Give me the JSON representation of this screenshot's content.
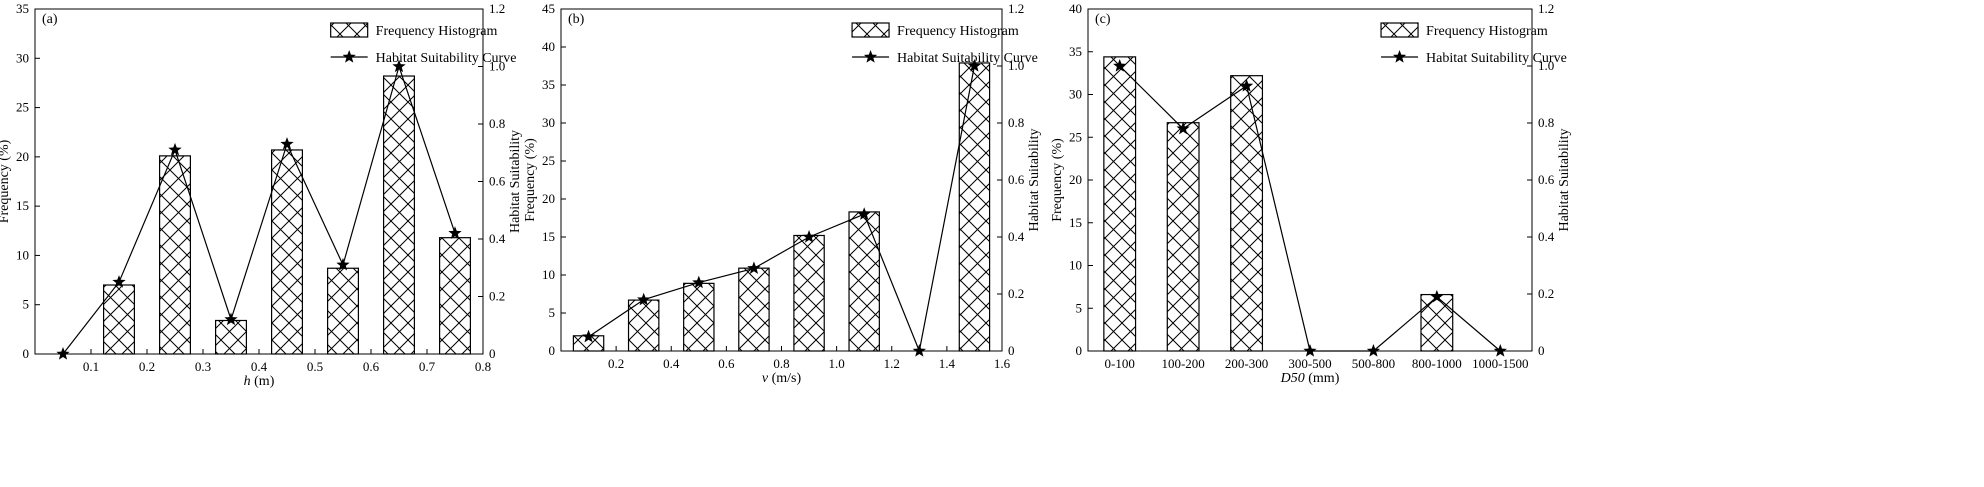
{
  "chart_data": [
    {
      "type": "bar",
      "panel_label": "(a)",
      "xlabel_var": "h",
      "xlabel_unit": " (m)",
      "ylabel": "Frequency (%)",
      "y2label": "Habitat Suitability",
      "xlim": [
        0,
        0.8
      ],
      "ylim": [
        0,
        35
      ],
      "y2lim": [
        0,
        1.2
      ],
      "xticks": [
        "0.1",
        "0.2",
        "0.3",
        "0.4",
        "0.5",
        "0.6",
        "0.7",
        "0.8"
      ],
      "xtick_values": [
        0.1,
        0.2,
        0.3,
        0.4,
        0.5,
        0.6,
        0.7,
        0.8
      ],
      "yticks": [
        "0",
        "5",
        "10",
        "15",
        "20",
        "25",
        "30",
        "35"
      ],
      "y2ticks": [
        "0",
        "0.2",
        "0.4",
        "0.6",
        "0.8",
        "1.0",
        "1.2"
      ],
      "bar_width": 0.055,
      "series": [
        {
          "name": "Frequency Histogram",
          "x": [
            0.15,
            0.25,
            0.35,
            0.45,
            0.55,
            0.65,
            0.75
          ],
          "values": [
            7.0,
            20.1,
            3.4,
            20.7,
            8.7,
            28.2,
            11.8
          ]
        },
        {
          "name": "Habitat Suitability Curve",
          "x": [
            0.05,
            0.15,
            0.25,
            0.35,
            0.45,
            0.55,
            0.65,
            0.75
          ],
          "values": [
            0.0,
            0.25,
            0.71,
            0.12,
            0.73,
            0.31,
            1.0,
            0.42
          ]
        }
      ],
      "legend_position": "top-right"
    },
    {
      "type": "bar",
      "panel_label": "(b)",
      "xlabel_var": "v",
      "xlabel_unit": " (m/s)",
      "ylabel": "Frequency (%)",
      "y2label": "Habitat Suitability",
      "xlim": [
        0,
        1.6
      ],
      "ylim": [
        0,
        45
      ],
      "y2lim": [
        0,
        1.2
      ],
      "xticks": [
        "0.2",
        "0.4",
        "0.6",
        "0.8",
        "1.0",
        "1.2",
        "1.4",
        "1.6"
      ],
      "xtick_values": [
        0.2,
        0.4,
        0.6,
        0.8,
        1.0,
        1.2,
        1.4,
        1.6
      ],
      "yticks": [
        "0",
        "5",
        "10",
        "15",
        "20",
        "25",
        "30",
        "35",
        "40",
        "45"
      ],
      "y2ticks": [
        "0",
        "0.2",
        "0.4",
        "0.6",
        "0.8",
        "1.0",
        "1.2"
      ],
      "bar_width": 0.11,
      "series": [
        {
          "name": "Frequency Histogram",
          "x": [
            0.1,
            0.3,
            0.5,
            0.7,
            0.9,
            1.1,
            1.5
          ],
          "values": [
            2.0,
            6.7,
            8.9,
            10.9,
            15.2,
            18.3,
            37.9
          ]
        },
        {
          "name": "Habitat Suitability Curve",
          "x": [
            0.1,
            0.3,
            0.5,
            0.7,
            0.9,
            1.1,
            1.3,
            1.5
          ],
          "values": [
            0.05,
            0.18,
            0.24,
            0.29,
            0.4,
            0.48,
            0.0,
            1.0
          ]
        }
      ],
      "legend_position": "top-right"
    },
    {
      "type": "bar",
      "panel_label": "(c)",
      "xlabel_var": "D50",
      "xlabel_unit": " (mm)",
      "ylabel": "Frequency (%)",
      "y2label": "Habitat Suitability",
      "categories": [
        "0-100",
        "100-200",
        "200-300",
        "300-500",
        "500-800",
        "800-1000",
        "1000-1500"
      ],
      "ylim": [
        0,
        40
      ],
      "y2lim": [
        0,
        1.2
      ],
      "yticks": [
        "0",
        "5",
        "10",
        "15",
        "20",
        "25",
        "30",
        "35",
        "40"
      ],
      "y2ticks": [
        "0",
        "0.2",
        "0.4",
        "0.6",
        "0.8",
        "1.0",
        "1.2"
      ],
      "bar_width": 0.5,
      "series": [
        {
          "name": "Frequency Histogram",
          "values": [
            34.4,
            26.7,
            32.2,
            0,
            0,
            6.6,
            0
          ]
        },
        {
          "name": "Habitat Suitability Curve",
          "values": [
            1.0,
            0.78,
            0.93,
            0.0,
            0.0,
            0.19,
            0.0
          ]
        }
      ],
      "legend_position": "top-right"
    }
  ]
}
